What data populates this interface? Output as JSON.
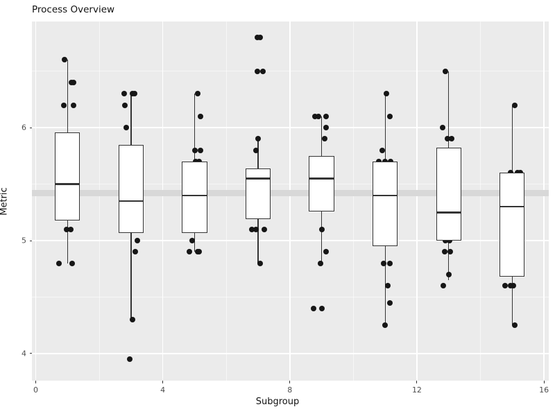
{
  "chart_data": {
    "type": "boxplot",
    "title": "Process Overview",
    "xlabel": "Subgroup",
    "ylabel": "Metric",
    "x_ticks": [
      0,
      4,
      8,
      12,
      16
    ],
    "x_minor_ticks": [
      2,
      6,
      10,
      14
    ],
    "y_ticks": [
      4,
      5,
      6
    ],
    "y_minor_ticks": [
      4.5,
      5.5,
      6.5
    ],
    "xlim": [
      -0.12,
      16.14
    ],
    "ylim": [
      3.76,
      6.94
    ],
    "grid": "on",
    "legend": "none",
    "box_width": 0.79,
    "reference_band": {
      "y_from": 5.39,
      "y_to": 5.45
    },
    "groups": [
      {
        "x": 1,
        "min": 4.8,
        "q1": 5.18,
        "median": 5.5,
        "q3": 5.96,
        "max": 6.6,
        "points": [
          {
            "v": 6.6,
            "dx": -0.09
          },
          {
            "v": 6.4,
            "dx": 0.13
          },
          {
            "v": 6.4,
            "dx": 0.2
          },
          {
            "v": 6.2,
            "dx": -0.11
          },
          {
            "v": 6.2,
            "dx": 0.2
          },
          {
            "v": 5.1,
            "dx": -0.02
          },
          {
            "v": 5.1,
            "dx": 0.11
          },
          {
            "v": 4.8,
            "dx": -0.26
          },
          {
            "v": 4.8,
            "dx": 0.14
          }
        ]
      },
      {
        "x": 3,
        "min": 4.3,
        "q1": 5.07,
        "median": 5.35,
        "q3": 5.85,
        "max": 6.3,
        "points": [
          {
            "v": 6.3,
            "dx": -0.21
          },
          {
            "v": 6.3,
            "dx": 0.04
          },
          {
            "v": 6.3,
            "dx": 0.12
          },
          {
            "v": 6.2,
            "dx": -0.19
          },
          {
            "v": 6.0,
            "dx": -0.14
          },
          {
            "v": 5.0,
            "dx": 0.2
          },
          {
            "v": 4.9,
            "dx": 0.14
          },
          {
            "v": 4.3,
            "dx": 0.05
          },
          {
            "v": 3.95,
            "dx": -0.04
          }
        ]
      },
      {
        "x": 5,
        "min": 4.9,
        "q1": 5.07,
        "median": 5.4,
        "q3": 5.7,
        "max": 6.3,
        "points": [
          {
            "v": 6.3,
            "dx": 0.09
          },
          {
            "v": 6.1,
            "dx": 0.19
          },
          {
            "v": 5.8,
            "dx": 0.01
          },
          {
            "v": 5.8,
            "dx": 0.18
          },
          {
            "v": 5.7,
            "dx": 0.04
          },
          {
            "v": 5.7,
            "dx": 0.15
          },
          {
            "v": 5.0,
            "dx": -0.07
          },
          {
            "v": 4.9,
            "dx": -0.17
          },
          {
            "v": 4.9,
            "dx": 0.1
          },
          {
            "v": 4.9,
            "dx": 0.15
          }
        ]
      },
      {
        "x": 7,
        "min": 4.8,
        "q1": 5.19,
        "median": 5.55,
        "q3": 5.64,
        "max": 5.9,
        "points": [
          {
            "v": 6.8,
            "dx": -0.02
          },
          {
            "v": 6.8,
            "dx": 0.06
          },
          {
            "v": 6.5,
            "dx": -0.02
          },
          {
            "v": 6.5,
            "dx": 0.16
          },
          {
            "v": 5.9,
            "dx": 0.01
          },
          {
            "v": 5.8,
            "dx": -0.06
          },
          {
            "v": 5.1,
            "dx": -0.2
          },
          {
            "v": 5.1,
            "dx": -0.06
          },
          {
            "v": 5.1,
            "dx": 0.2
          },
          {
            "v": 4.8,
            "dx": 0.07
          }
        ]
      },
      {
        "x": 9,
        "min": 4.8,
        "q1": 5.26,
        "median": 5.55,
        "q3": 5.75,
        "max": 6.1,
        "points": [
          {
            "v": 6.1,
            "dx": -0.2
          },
          {
            "v": 6.1,
            "dx": -0.11
          },
          {
            "v": 6.1,
            "dx": 0.14
          },
          {
            "v": 6.0,
            "dx": 0.15
          },
          {
            "v": 5.9,
            "dx": 0.1
          },
          {
            "v": 5.1,
            "dx": 0.0
          },
          {
            "v": 4.9,
            "dx": 0.14
          },
          {
            "v": 4.8,
            "dx": -0.04
          },
          {
            "v": 4.4,
            "dx": -0.25
          },
          {
            "v": 4.4,
            "dx": 0.0
          }
        ]
      },
      {
        "x": 11,
        "min": 4.25,
        "q1": 4.95,
        "median": 5.4,
        "q3": 5.7,
        "max": 6.3,
        "points": [
          {
            "v": 6.3,
            "dx": 0.05
          },
          {
            "v": 6.1,
            "dx": 0.14
          },
          {
            "v": 5.8,
            "dx": -0.09
          },
          {
            "v": 5.7,
            "dx": -0.2
          },
          {
            "v": 5.7,
            "dx": 0.0
          },
          {
            "v": 5.7,
            "dx": 0.17
          },
          {
            "v": 4.8,
            "dx": -0.05
          },
          {
            "v": 4.8,
            "dx": 0.16
          },
          {
            "v": 4.6,
            "dx": 0.08
          },
          {
            "v": 4.45,
            "dx": 0.14
          },
          {
            "v": 4.25,
            "dx": 0.0
          }
        ]
      },
      {
        "x": 13,
        "min": 4.65,
        "q1": 5.0,
        "median": 5.25,
        "q3": 5.82,
        "max": 6.5,
        "points": [
          {
            "v": 6.5,
            "dx": -0.11
          },
          {
            "v": 6.0,
            "dx": -0.2
          },
          {
            "v": 5.9,
            "dx": -0.04
          },
          {
            "v": 5.9,
            "dx": 0.09
          },
          {
            "v": 5.0,
            "dx": -0.11
          },
          {
            "v": 5.0,
            "dx": 0.03
          },
          {
            "v": 4.9,
            "dx": -0.13
          },
          {
            "v": 4.9,
            "dx": 0.05
          },
          {
            "v": 4.7,
            "dx": 0.0
          },
          {
            "v": 4.6,
            "dx": -0.16
          }
        ]
      },
      {
        "x": 15,
        "min": 4.25,
        "q1": 4.68,
        "median": 5.3,
        "q3": 5.6,
        "max": 6.2,
        "points": [
          {
            "v": 6.2,
            "dx": 0.08
          },
          {
            "v": 5.6,
            "dx": -0.06
          },
          {
            "v": 5.6,
            "dx": 0.17
          },
          {
            "v": 5.6,
            "dx": 0.25
          },
          {
            "v": 4.6,
            "dx": -0.22
          },
          {
            "v": 4.6,
            "dx": -0.04
          },
          {
            "v": 4.6,
            "dx": 0.03
          },
          {
            "v": 4.25,
            "dx": 0.07
          }
        ]
      }
    ]
  },
  "style": {
    "panel_bg": "#EBEBEB",
    "grid_major": "#FFFFFF",
    "grid_minor": "rgba(255,255,255,0.55)",
    "band_color": "#D8D8D8",
    "box_fill": "#FFFFFF",
    "stroke": "#343434",
    "point_color": "#161616",
    "tick_color": "#333333",
    "tick_label_color": "#4D4D4D",
    "text_color": "#121212"
  }
}
